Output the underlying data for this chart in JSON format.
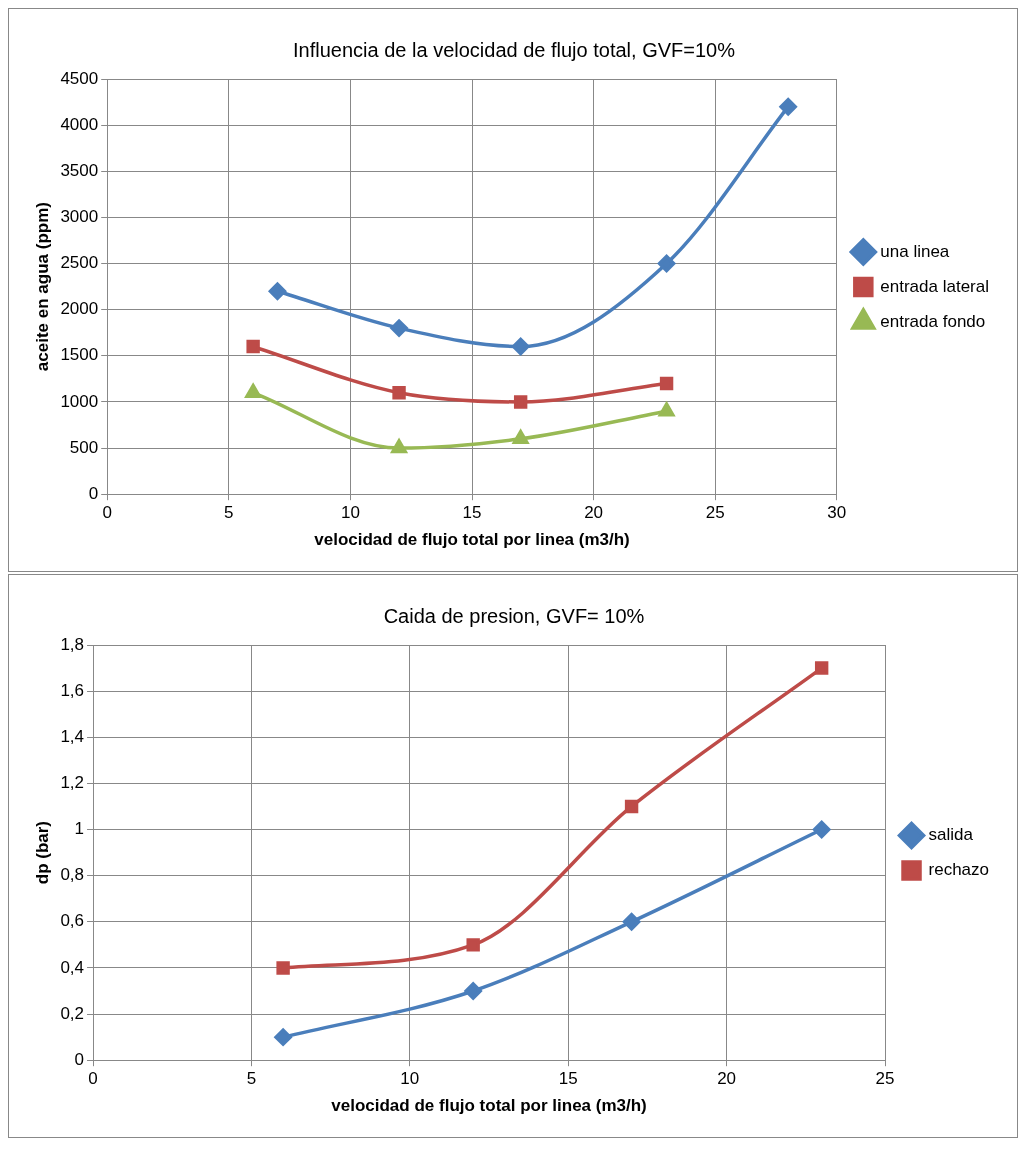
{
  "chart_data": [
    {
      "type": "line",
      "title": "Influencia de la velocidad de flujo total, GVF=10%",
      "xlabel": "velocidad de flujo total por linea (m3/h)",
      "ylabel": "aceite en agua (ppm)",
      "xlim": [
        0,
        30
      ],
      "xticks": [
        0,
        5,
        10,
        15,
        20,
        25,
        30
      ],
      "ylim": [
        0,
        4500
      ],
      "yticks": [
        0,
        500,
        1000,
        1500,
        2000,
        2500,
        3000,
        3500,
        4000,
        4500
      ],
      "grid": true,
      "legend": "right",
      "series": [
        {
          "name": "una linea",
          "color": "#4a7ebb",
          "marker": "diamond",
          "x": [
            7,
            12,
            17,
            23,
            28
          ],
          "values": [
            2200,
            1800,
            1600,
            2500,
            4200
          ]
        },
        {
          "name": "entrada lateral",
          "color": "#be4b48",
          "marker": "square",
          "x": [
            6,
            12,
            17,
            23
          ],
          "values": [
            1600,
            1100,
            1000,
            1200
          ]
        },
        {
          "name": "entrada fondo",
          "color": "#98b954",
          "marker": "triangle",
          "x": [
            6,
            12,
            17,
            23
          ],
          "values": [
            1100,
            500,
            600,
            900
          ]
        }
      ]
    },
    {
      "type": "line",
      "title": "Caida de presion, GVF= 10%",
      "xlabel": "velocidad de flujo total por linea (m3/h)",
      "ylabel": "dp (bar)",
      "xlim": [
        0,
        25
      ],
      "xticks": [
        0,
        5,
        10,
        15,
        20,
        25
      ],
      "ylim": [
        0,
        1.8
      ],
      "yticks": [
        0,
        {
          "value": 0.2,
          "label": "0,2"
        },
        {
          "value": 0.4,
          "label": "0,4"
        },
        {
          "value": 0.6,
          "label": "0,6"
        },
        {
          "value": 0.8,
          "label": "0,8"
        },
        1,
        {
          "value": 1.2,
          "label": "1,2"
        },
        {
          "value": 1.4,
          "label": "1,4"
        },
        {
          "value": 1.6,
          "label": "1,6"
        },
        {
          "value": 1.8,
          "label": "1,8"
        }
      ],
      "grid": true,
      "legend": "right",
      "series": [
        {
          "name": "salida",
          "color": "#4a7ebb",
          "marker": "diamond",
          "x": [
            6,
            12,
            17,
            23
          ],
          "values": [
            0.1,
            0.3,
            0.6,
            1.0
          ]
        },
        {
          "name": "rechazo",
          "color": "#be4b48",
          "marker": "square",
          "x": [
            6,
            12,
            17,
            23
          ],
          "values": [
            0.4,
            0.5,
            1.1,
            1.7
          ]
        }
      ]
    }
  ]
}
